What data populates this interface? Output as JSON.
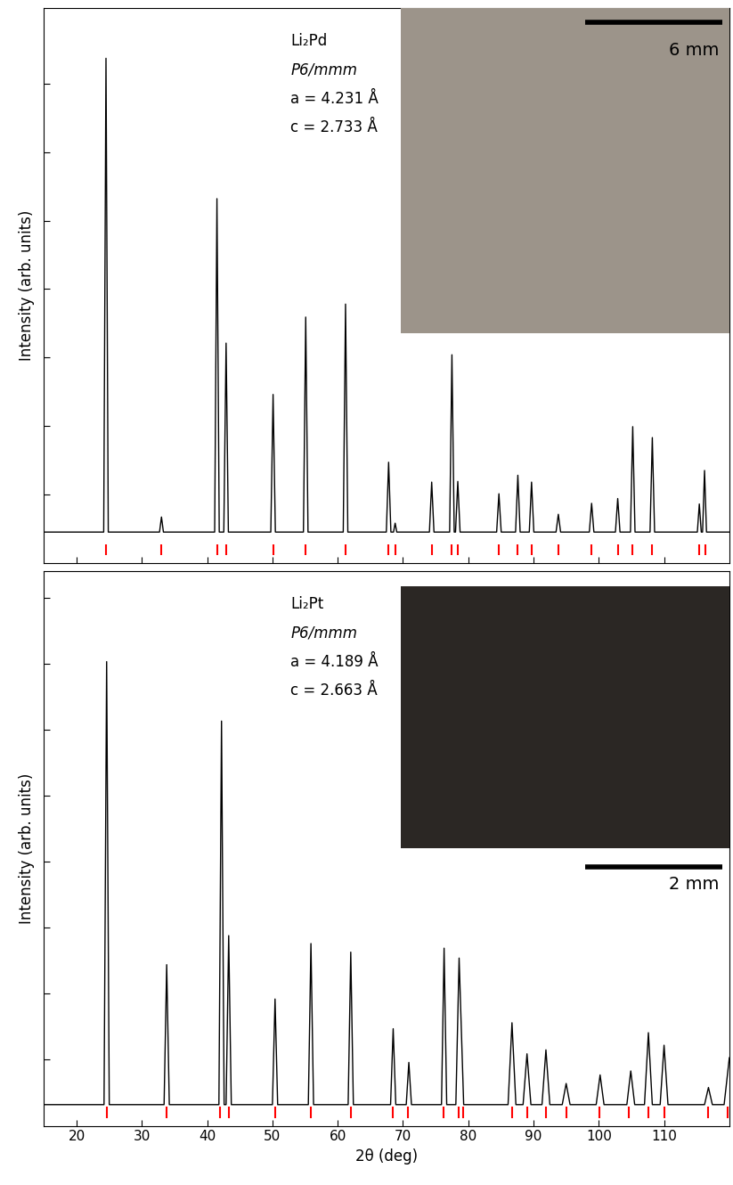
{
  "chart_data": [
    {
      "type": "line",
      "ylabel": "Intensity (arb. units)",
      "annotations": [
        "Li₂Pd",
        "P6/mmm",
        "a = 4.231 Å",
        "c = 2.733 Å"
      ],
      "scale_bar": "6 mm",
      "x": [
        15,
        24.15,
        24.5,
        24.85,
        32.7,
        33.0,
        33.3,
        41.15,
        41.5,
        41.85,
        42.55,
        42.9,
        43.25,
        49.75,
        50.1,
        50.45,
        54.75,
        55.1,
        55.45,
        60.85,
        61.2,
        61.55,
        67.45,
        67.8,
        68.15,
        68.55,
        68.8,
        69.05,
        74.05,
        74.4,
        74.75,
        77.15,
        77.5,
        77.85,
        78.05,
        78.4,
        78.75,
        84.35,
        84.7,
        85.05,
        87.25,
        87.6,
        87.95,
        89.35,
        89.7,
        90.05,
        93.45,
        93.8,
        94.15,
        98.55,
        98.9,
        99.25,
        102.55,
        102.9,
        103.25,
        104.85,
        105.2,
        105.55,
        107.85,
        108.2,
        108.55,
        115.1,
        115.4,
        115.7,
        115.9,
        116.2,
        116.5,
        120
      ],
      "values": [
        4.5,
        4.5,
        73.7,
        4.5,
        4.5,
        6.7,
        4.5,
        4.5,
        53.2,
        4.5,
        4.5,
        32.1,
        4.5,
        4.5,
        24.6,
        4.5,
        4.5,
        35.9,
        4.5,
        4.5,
        37.8,
        4.5,
        4.5,
        14.7,
        4.5,
        4.5,
        5.8,
        4.5,
        4.5,
        11.8,
        4.5,
        4.5,
        30.4,
        4.5,
        4.5,
        11.9,
        4.5,
        4.5,
        10.1,
        4.5,
        4.5,
        12.8,
        4.5,
        4.5,
        11.8,
        4.5,
        4.5,
        7.1,
        4.5,
        4.5,
        8.7,
        4.5,
        4.5,
        9.4,
        4.5,
        4.5,
        19.9,
        4.5,
        4.5,
        18.3,
        4.5,
        4.5,
        8.6,
        4.5,
        4.5,
        13.5,
        4.5,
        4.5
      ],
      "color": "#000000",
      "reflections": {
        "x": [
          24.5,
          33.0,
          41.5,
          42.9,
          50.1,
          55.1,
          61.2,
          67.8,
          68.9,
          74.4,
          77.4,
          78.4,
          84.7,
          87.6,
          89.7,
          93.8,
          98.9,
          102.9,
          105.2,
          108.2,
          115.4,
          116.3
        ],
        "color": "#ff0000"
      },
      "xlim": [
        15,
        120
      ],
      "xticks": [
        20,
        30,
        40,
        50,
        60,
        70,
        80,
        90,
        100,
        110
      ],
      "ylim": [
        0,
        81
      ],
      "yticks": [
        10,
        20,
        30,
        40,
        50,
        60,
        70
      ],
      "tick_labels": false
    },
    {
      "type": "line",
      "xlabel": "2θ (deg)",
      "ylabel": "Intensity (arb. units)",
      "annotations": [
        "Li₂Pt",
        "P6/mmm",
        "a = 4.189 Å",
        "c = 2.663 Å"
      ],
      "scale_bar": "2 mm",
      "x": [
        15,
        24.2,
        24.6,
        25.0,
        33.4,
        33.8,
        34.2,
        41.8,
        42.2,
        42.6,
        42.9,
        43.3,
        43.7,
        50.0,
        50.4,
        50.8,
        55.5,
        55.9,
        56.3,
        61.6,
        62.0,
        62.4,
        68.1,
        68.5,
        68.9,
        70.5,
        70.9,
        71.3,
        75.9,
        76.3,
        76.7,
        78.1,
        78.6,
        79.3,
        86.1,
        86.7,
        87.3,
        88.4,
        89.0,
        89.6,
        91.3,
        91.9,
        92.5,
        94.4,
        95.0,
        95.6,
        99.6,
        100.2,
        100.8,
        104.3,
        104.9,
        105.5,
        107.0,
        107.6,
        108.2,
        109.4,
        110.0,
        110.6,
        116.2,
        116.8,
        117.4,
        119.2,
        120
      ],
      "values": [
        3.2,
        3.2,
        70.3,
        3.2,
        3.2,
        24.4,
        3.2,
        3.2,
        61.3,
        3.2,
        3.2,
        28.8,
        3.2,
        3.2,
        19.2,
        3.2,
        3.2,
        27.6,
        3.2,
        3.2,
        26.3,
        3.2,
        3.2,
        14.7,
        3.2,
        3.2,
        9.6,
        3.2,
        3.2,
        26.9,
        3.2,
        3.2,
        25.4,
        3.2,
        3.2,
        15.6,
        3.2,
        3.2,
        10.9,
        3.2,
        3.2,
        11.5,
        3.2,
        3.2,
        6.4,
        3.2,
        3.2,
        7.7,
        3.2,
        3.2,
        8.3,
        3.2,
        3.2,
        14.1,
        3.2,
        3.2,
        12.2,
        3.2,
        3.2,
        5.8,
        3.2,
        3.2,
        10.3
      ],
      "color": "#000000",
      "reflections": {
        "x": [
          24.6,
          33.8,
          42.0,
          43.3,
          50.4,
          55.9,
          62.0,
          68.4,
          70.8,
          76.2,
          78.5,
          79.2,
          86.7,
          89.0,
          91.9,
          95.0,
          100.1,
          104.6,
          107.6,
          110.0,
          116.7,
          119.8
        ],
        "color": "#ff0000"
      },
      "xlim": [
        15,
        120
      ],
      "xticks": [
        20,
        30,
        40,
        50,
        60,
        70,
        80,
        90,
        100,
        110
      ],
      "ylim": [
        0,
        84
      ],
      "yticks": [
        10,
        20,
        30,
        40,
        50,
        60,
        70,
        80
      ],
      "tick_labels": "x"
    }
  ]
}
